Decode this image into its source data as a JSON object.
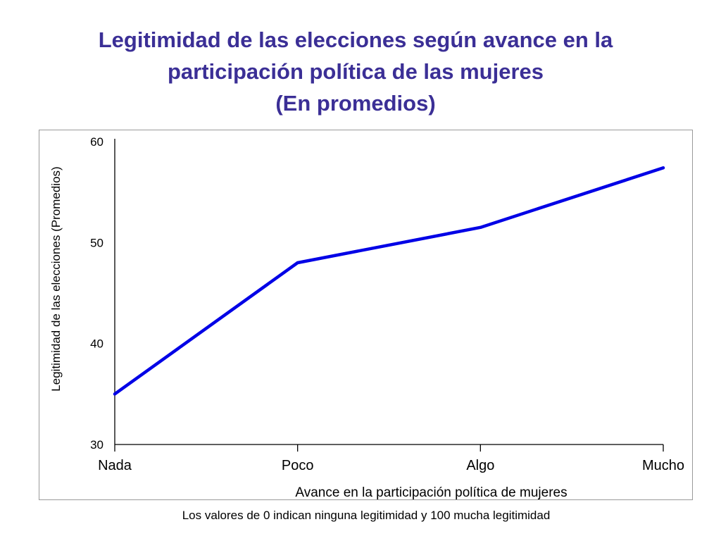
{
  "title": {
    "line1": "Legitimidad de las elecciones según avance en la",
    "line2": "participación política de las mujeres",
    "line3": "(En promedios)"
  },
  "footnote": "Los valores de 0 indican ninguna legitimidad y 100 mucha legitimidad",
  "chart_data": {
    "type": "line",
    "title": "",
    "xlabel": "Avance en la participación política de mujeres",
    "ylabel": "Legitimidad de las elecciones (Promedios)",
    "categories": [
      "Nada",
      "Poco",
      "Algo",
      "Mucho"
    ],
    "series": [
      {
        "values": [
          35,
          48,
          51.5,
          57.4
        ]
      }
    ],
    "ylim": [
      30,
      60
    ],
    "yticks": [
      "30",
      "40",
      "50",
      "60"
    ],
    "grid": false,
    "legend": "none",
    "line_color": "#0000e6"
  }
}
